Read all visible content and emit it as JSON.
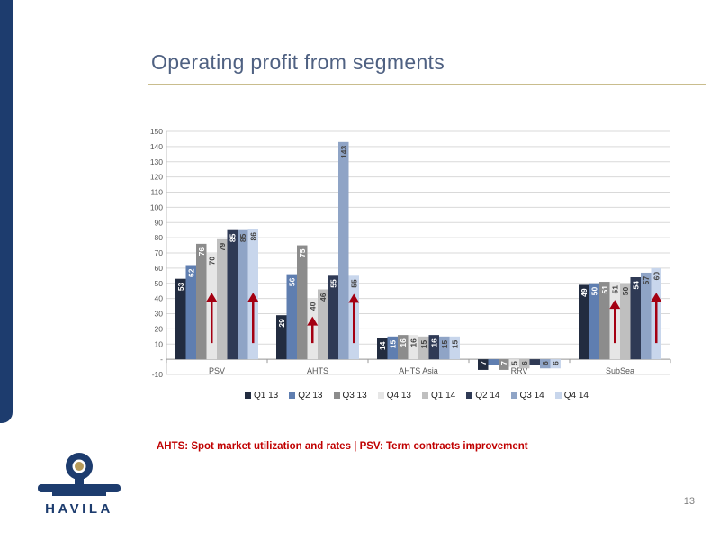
{
  "slide": {
    "title": "Operating profit from segments",
    "caption": "AHTS: Spot market utilization and rates | PSV: Term contracts improvement",
    "page_number": "13"
  },
  "logo": {
    "text": "HAVILA",
    "color": "#1d3c6e"
  },
  "colors": {
    "series": [
      "#222c40",
      "#5f7eb0",
      "#8c8c8c",
      "#e6e6e6",
      "#bfbfbf",
      "#2f3a55",
      "#8fa4c6",
      "#c8d6ec"
    ],
    "arrow": "#a40012",
    "grid": "#d9d9d9"
  },
  "chart_data": {
    "type": "bar",
    "categories": [
      "PSV",
      "AHTS",
      "AHTS Asia",
      "RRV",
      "SubSea"
    ],
    "y_tick_labels": [
      "-10",
      "-",
      "10",
      "20",
      "30",
      "40",
      "50",
      "60",
      "70",
      "80",
      "90",
      "100",
      "110",
      "120",
      "130",
      "140",
      "150"
    ],
    "ylim": [
      -10,
      150
    ],
    "grid": true,
    "legend_position": "bottom",
    "series": [
      {
        "name": "Q1 13",
        "values": [
          53,
          29,
          14,
          -7,
          49
        ]
      },
      {
        "name": "Q2 13",
        "values": [
          62,
          56,
          15,
          -4,
          50
        ]
      },
      {
        "name": "Q3 13",
        "values": [
          76,
          75,
          16,
          -7,
          51
        ]
      },
      {
        "name": "Q4 13",
        "values": [
          70,
          40,
          16,
          -5,
          51
        ]
      },
      {
        "name": "Q1 14",
        "values": [
          79,
          46,
          15,
          -6,
          50
        ]
      },
      {
        "name": "Q2 14",
        "values": [
          85,
          55,
          16,
          -4,
          54
        ]
      },
      {
        "name": "Q3 14",
        "values": [
          85,
          143,
          15,
          -6,
          57
        ]
      },
      {
        "name": "Q4 14",
        "values": [
          86,
          55,
          15,
          -6,
          60
        ]
      }
    ],
    "data_labels": [
      [
        "53",
        "62",
        "76",
        "70",
        "79",
        "85",
        "85",
        "86"
      ],
      [
        "29",
        "56",
        "75",
        "40",
        "46",
        "55",
        "143",
        "55"
      ],
      [
        "14",
        "15",
        "16",
        "16",
        "15",
        "16",
        "15",
        "15"
      ],
      [
        "7",
        "",
        "7",
        "5",
        "6",
        "",
        "6",
        "6"
      ],
      [
        "49",
        "50",
        "51",
        "51",
        "50",
        "54",
        "57",
        "60"
      ]
    ],
    "arrows": [
      {
        "category": 0,
        "series": 3
      },
      {
        "category": 0,
        "series": 7
      },
      {
        "category": 1,
        "series": 3
      },
      {
        "category": 1,
        "series": 7
      },
      {
        "category": 4,
        "series": 3
      },
      {
        "category": 4,
        "series": 7
      }
    ]
  }
}
